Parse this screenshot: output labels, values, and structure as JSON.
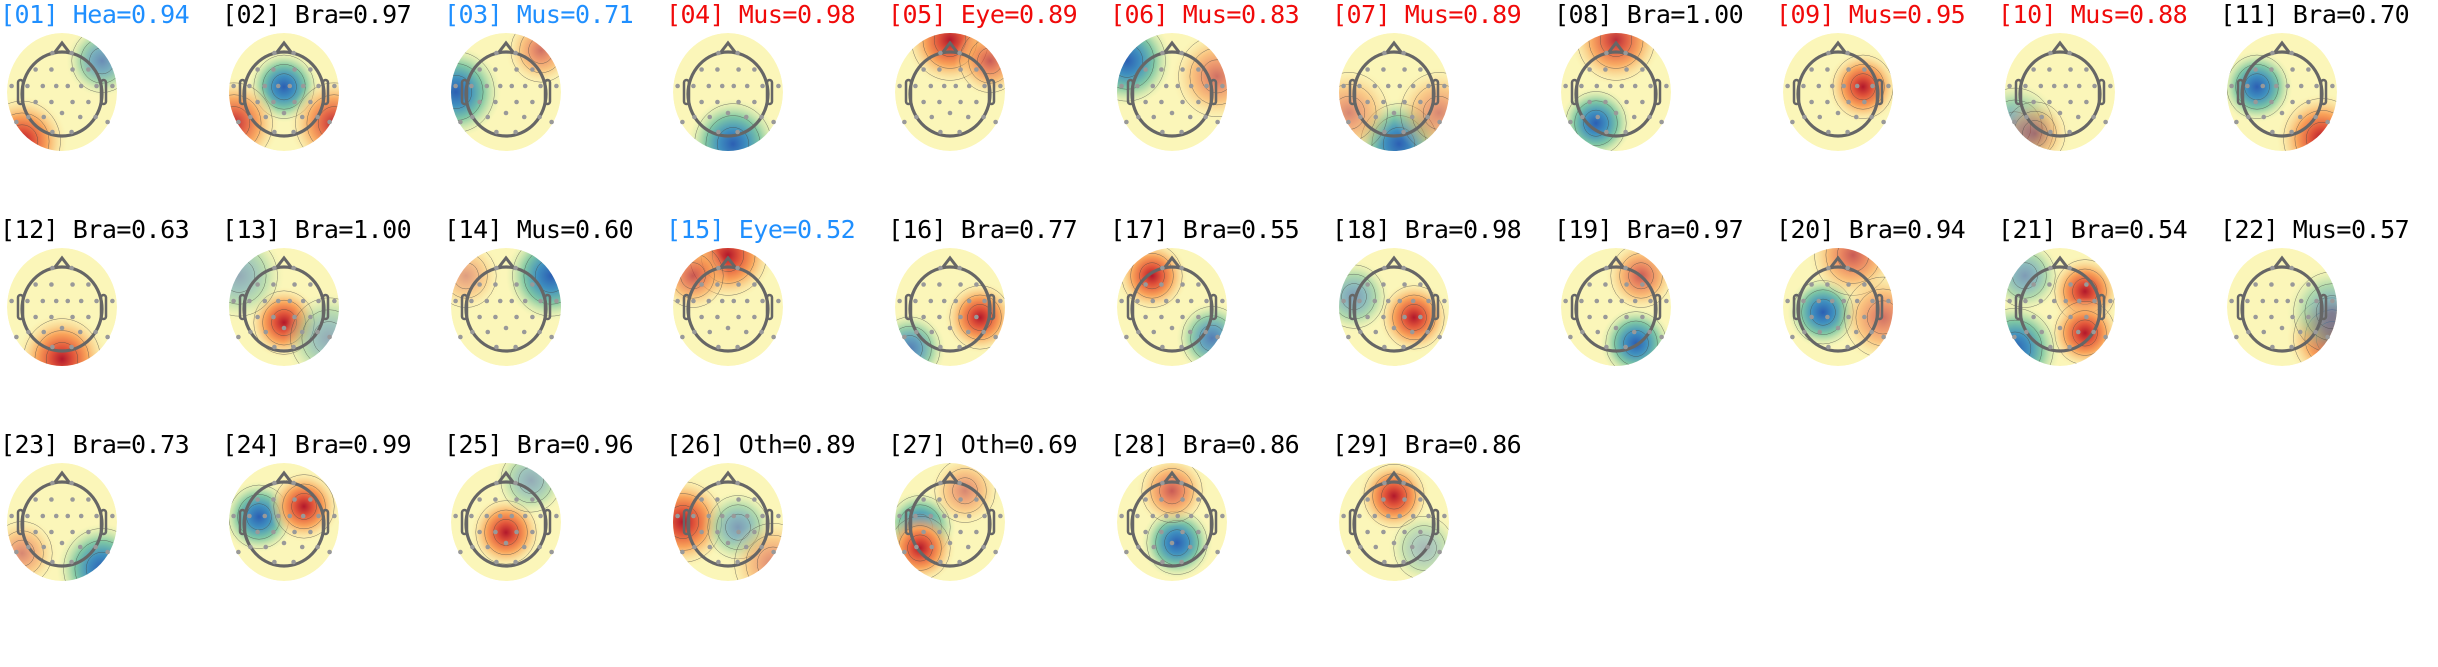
{
  "chart_data": {
    "type": "heatmap",
    "title": "",
    "colormap": "RdYlBu_r (blue = negative, red = positive)",
    "label_colors": {
      "black": "#000000",
      "blue": "#1f8fff",
      "red": "#f00a0a"
    },
    "components": [
      {
        "title": "[01] Hea=0.94",
        "label_color": "blue",
        "peaks": [
          [
            0.8,
            -0.6,
            -0.6
          ],
          [
            -0.8,
            0.95,
            1.0
          ]
        ]
      },
      {
        "title": "[02] Bra=0.97",
        "label_color": "black",
        "peaks": [
          [
            0,
            -0.1,
            -1.0
          ],
          [
            -1,
            0.6,
            0.8
          ],
          [
            1,
            0.6,
            0.8
          ]
        ]
      },
      {
        "title": "[03] Mus=0.71",
        "label_color": "blue",
        "peaks": [
          [
            -1,
            0,
            -1.0
          ],
          [
            0.7,
            -0.8,
            0.5
          ]
        ]
      },
      {
        "title": "[04] Mus=0.98",
        "label_color": "red",
        "peaks": [
          [
            0.1,
            1.0,
            -1.0
          ]
        ]
      },
      {
        "title": "[05] Eye=0.89",
        "label_color": "red",
        "peaks": [
          [
            0,
            -1,
            1.0
          ],
          [
            0.8,
            -0.6,
            0.6
          ]
        ]
      },
      {
        "title": "[06] Mus=0.83",
        "label_color": "red",
        "peaks": [
          [
            -0.9,
            -0.6,
            -1.0
          ],
          [
            0.9,
            -0.3,
            0.5
          ]
        ]
      },
      {
        "title": "[07] Mus=0.89",
        "label_color": "red",
        "peaks": [
          [
            0.1,
            1.0,
            -1.0
          ],
          [
            -0.9,
            0.4,
            0.4
          ],
          [
            0.9,
            0.4,
            0.4
          ]
        ]
      },
      {
        "title": "[08] Bra=1.00",
        "label_color": "black",
        "peaks": [
          [
            0,
            -1,
            0.8
          ],
          [
            -0.4,
            0.6,
            -0.9
          ]
        ]
      },
      {
        "title": "[09] Mus=0.95",
        "label_color": "red",
        "peaks": [
          [
            0.5,
            -0.1,
            1.0
          ]
        ]
      },
      {
        "title": "[10] Mus=0.88",
        "label_color": "red",
        "peaks": [
          [
            -0.9,
            0.7,
            -0.6
          ],
          [
            -0.5,
            0.8,
            0.4
          ]
        ]
      },
      {
        "title": "[11] Bra=0.70",
        "label_color": "black",
        "peaks": [
          [
            -0.5,
            -0.1,
            -1.0
          ],
          [
            0.8,
            0.9,
            0.9
          ]
        ]
      },
      {
        "title": "[12] Bra=0.63",
        "label_color": "black",
        "peaks": [
          [
            0,
            1.0,
            1.0
          ]
        ]
      },
      {
        "title": "[13] Bra=1.00",
        "label_color": "black",
        "peaks": [
          [
            0,
            0.3,
            1.0
          ],
          [
            -0.9,
            -0.6,
            -0.4
          ],
          [
            0.9,
            0.6,
            -0.4
          ]
        ]
      },
      {
        "title": "[14] Mus=0.60",
        "label_color": "black",
        "peaks": [
          [
            0.9,
            -0.6,
            -1.0
          ],
          [
            -0.8,
            -0.6,
            0.3
          ]
        ]
      },
      {
        "title": "[15] Eye=0.52",
        "label_color": "blue",
        "peaks": [
          [
            0,
            -1,
            1.0
          ],
          [
            -0.7,
            -0.6,
            0.6
          ]
        ]
      },
      {
        "title": "[16] Bra=0.77",
        "label_color": "black",
        "peaks": [
          [
            0.6,
            0.2,
            1.0
          ],
          [
            -0.8,
            0.8,
            -0.7
          ]
        ]
      },
      {
        "title": "[17] Bra=0.55",
        "label_color": "black",
        "peaks": [
          [
            -0.4,
            -0.6,
            1.0
          ],
          [
            0.8,
            0.6,
            -0.7
          ]
        ]
      },
      {
        "title": "[18] Bra=0.98",
        "label_color": "black",
        "peaks": [
          [
            0.4,
            0.2,
            1.0
          ],
          [
            -0.8,
            -0.2,
            -0.5
          ]
        ]
      },
      {
        "title": "[19] Bra=0.97",
        "label_color": "black",
        "peaks": [
          [
            0.4,
            0.7,
            -1.0
          ],
          [
            0.5,
            -0.6,
            0.6
          ]
        ]
      },
      {
        "title": "[20] Bra=0.94",
        "label_color": "black",
        "peaks": [
          [
            -0.3,
            0.1,
            -1.0
          ],
          [
            0.3,
            -1,
            0.6
          ],
          [
            0.9,
            0.2,
            0.5
          ]
        ]
      },
      {
        "title": "[21] Bra=0.54",
        "label_color": "black",
        "peaks": [
          [
            0.5,
            -0.3,
            1.0
          ],
          [
            0.5,
            0.5,
            1.0
          ],
          [
            -0.9,
            0.8,
            -1.0
          ],
          [
            -0.7,
            -0.6,
            -0.5
          ]
        ]
      },
      {
        "title": "[22] Mus=0.57",
        "label_color": "black",
        "peaks": [
          [
            1.0,
            0.6,
            1.0
          ],
          [
            1.0,
            0.1,
            -0.5
          ]
        ]
      },
      {
        "title": "[23] Bra=0.73",
        "label_color": "black",
        "peaks": [
          [
            0.8,
            0.9,
            -1.0
          ],
          [
            -0.8,
            0.6,
            0.4
          ]
        ]
      },
      {
        "title": "[24] Bra=0.99",
        "label_color": "black",
        "peaks": [
          [
            -0.5,
            -0.1,
            -1.0
          ],
          [
            0.4,
            -0.3,
            1.0
          ]
        ]
      },
      {
        "title": "[25] Bra=0.96",
        "label_color": "black",
        "peaks": [
          [
            0,
            0.2,
            1.0
          ],
          [
            0.5,
            -0.8,
            -0.4
          ]
        ]
      },
      {
        "title": "[26] Oth=0.89",
        "label_color": "black",
        "peaks": [
          [
            -0.9,
            0,
            1.0
          ],
          [
            0.2,
            0.1,
            -0.5
          ],
          [
            0.9,
            0.8,
            0.4
          ]
        ]
      },
      {
        "title": "[27] Oth=0.69",
        "label_color": "black",
        "peaks": [
          [
            -0.6,
            0.1,
            -1.0
          ],
          [
            -0.6,
            0.5,
            1.0
          ],
          [
            0.3,
            -0.6,
            0.4
          ]
        ]
      },
      {
        "title": "[28] Bra=0.86",
        "label_color": "black",
        "peaks": [
          [
            0.1,
            0.4,
            -0.9
          ],
          [
            0,
            -0.6,
            0.6
          ]
        ]
      },
      {
        "title": "[29] Bra=0.86",
        "label_color": "black",
        "peaks": [
          [
            0,
            -0.5,
            1.0
          ],
          [
            0.6,
            0.5,
            -0.3
          ]
        ]
      }
    ]
  }
}
